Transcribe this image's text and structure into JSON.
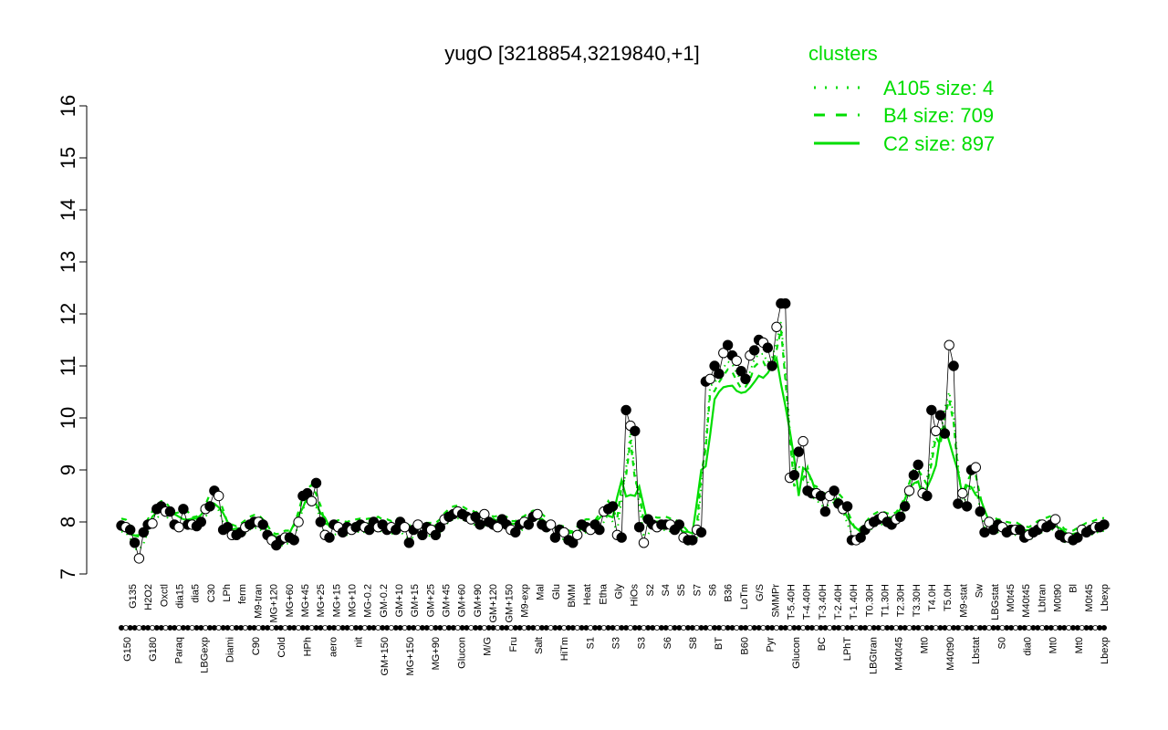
{
  "chart_data": {
    "type": "line",
    "title": "yugO [3218854,3219840,+1]",
    "xlabel": "",
    "ylabel": "",
    "ylim": [
      7,
      16
    ],
    "yticks": [
      7,
      8,
      9,
      10,
      11,
      12,
      13,
      14,
      15,
      16
    ],
    "grid": false,
    "legend": {
      "title": "clusters",
      "placement": "top-right",
      "entries": [
        {
          "label": "A105 size: 4",
          "style": "dotted"
        },
        {
          "label": "B4 size: 709",
          "style": "dashed"
        },
        {
          "label": "C2 size: 897",
          "style": "solid"
        }
      ]
    },
    "colors": {
      "cluster_line": "#00dd00",
      "points": "#000000",
      "axes": "#000000"
    },
    "x_labels_row1": [
      "G135",
      "H2O2",
      "Oxctl",
      "dia15",
      "dia5",
      "C30",
      "LPh",
      "ferm",
      "M9-tran",
      "MG+120",
      "MG+60",
      "MG+45",
      "MG+25",
      "MG+15",
      "MG+10",
      "MG-0.2",
      "GM-0.2",
      "GM+10",
      "GM+15",
      "GM+25",
      "GM+45",
      "GM+60",
      "GM+90",
      "GM+120",
      "GM+150",
      "M9-exp",
      "Mal",
      "Glu",
      "BMM",
      "Heat",
      "Etha",
      "Gly",
      "HiOs",
      "S2",
      "S4",
      "S5",
      "S7",
      "S6",
      "B36",
      "LoTm",
      "G/S",
      "SMMPr",
      "T-5.40H",
      "T-4.40H",
      "T-3.40H",
      "T-2.40H",
      "T-1.40H",
      "T0.30H",
      "T1.30H",
      "T2.30H",
      "T3.30H",
      "T4.0H",
      "T5.0H",
      "M9-stat",
      "Sw",
      "LBGstat",
      "M0t45",
      "M40t45",
      "Lbtran",
      "M0t90",
      "Bl",
      "M0t45",
      "Lbexp"
    ],
    "x_labels_row2": [
      "G150",
      "G180",
      "Paraq",
      "LBGexp",
      "Diami",
      "C90",
      "Cold",
      "HPh",
      "aero",
      "nit",
      "GM+150",
      "MG+150",
      "MG+90",
      "Glucon",
      "M/G",
      "Fru",
      "Salt",
      "HiTm",
      "S1",
      "S3",
      "S3",
      "S6",
      "S8",
      "BT",
      "B60",
      "Pyr",
      "Glucon",
      "BC",
      "LPhT",
      "LBGtran",
      "M40t45",
      "Mt0",
      "M40t90",
      "Lbstat",
      "S0",
      "dia0",
      "Mt0",
      "Mt0",
      "Lbexp"
    ],
    "series": [
      {
        "name": "",
        "type": "points",
        "values": [
          7.93,
          7.9,
          7.85,
          7.6,
          7.3,
          7.8,
          7.95,
          7.97,
          8.25,
          8.3,
          8.2,
          8.2,
          7.95,
          7.9,
          8.25,
          7.95,
          7.95,
          7.92,
          8.0,
          8.25,
          8.3,
          8.6,
          8.5,
          7.85,
          7.9,
          7.75,
          7.75,
          7.8,
          7.9,
          7.95,
          8.0,
          8.0,
          7.95,
          7.75,
          7.65,
          7.55,
          7.65,
          7.7,
          7.7,
          7.65,
          8.0,
          8.5,
          8.55,
          8.4,
          8.75,
          8.0,
          7.75,
          7.7,
          7.95,
          7.9,
          7.8,
          7.9,
          7.85,
          7.9,
          7.95,
          7.9,
          7.85,
          8.0,
          7.9,
          7.95,
          7.85,
          7.9,
          7.85,
          8.0,
          7.9,
          7.6,
          7.85,
          7.95,
          7.75,
          7.9,
          7.85,
          7.75,
          7.9,
          8.05,
          8.1,
          8.15,
          8.2,
          8.15,
          8.1,
          8.05,
          8.1,
          7.95,
          8.15,
          8.0,
          7.95,
          7.9,
          8.05,
          7.95,
          7.85,
          7.8,
          7.95,
          8.0,
          7.95,
          8.1,
          8.15,
          7.95,
          7.9,
          7.95,
          7.7,
          7.85,
          7.8,
          7.65,
          7.6,
          7.75,
          7.95,
          7.9,
          7.85,
          7.95,
          7.85,
          8.2,
          8.25,
          8.3,
          7.75,
          7.7,
          10.15,
          9.85,
          9.75,
          7.9,
          7.6,
          8.05,
          7.95,
          7.9,
          7.95,
          7.95,
          7.95,
          7.85,
          7.95,
          7.7,
          7.65,
          7.65,
          7.85,
          7.8,
          10.7,
          10.75,
          11.0,
          10.85,
          11.25,
          11.4,
          11.2,
          11.1,
          10.9,
          10.75,
          11.2,
          11.3,
          11.5,
          11.45,
          11.35,
          11.0,
          11.75,
          12.2,
          12.2,
          8.85,
          8.9,
          9.35,
          9.55,
          8.6,
          8.55,
          8.55,
          8.5,
          8.2,
          8.5,
          8.6,
          8.35,
          8.25,
          8.3,
          7.65,
          7.65,
          7.7,
          7.85,
          7.95,
          8.0,
          8.05,
          8.1,
          8.0,
          7.95,
          8.05,
          8.1,
          8.3,
          8.6,
          8.9,
          9.1,
          8.55,
          8.5,
          10.15,
          9.75,
          10.05,
          9.7,
          11.4,
          11.0,
          8.35,
          8.55,
          8.3,
          9.0,
          9.05,
          8.2,
          7.8,
          8.0,
          7.85,
          7.95,
          7.9,
          7.8,
          7.85,
          7.85,
          7.85,
          7.7,
          7.75,
          7.8,
          7.85,
          7.95,
          7.9,
          7.95,
          8.05,
          7.75,
          7.7,
          7.7,
          7.65,
          7.7,
          7.85,
          7.8,
          7.85,
          7.9,
          7.9,
          7.95
        ]
      }
    ]
  }
}
